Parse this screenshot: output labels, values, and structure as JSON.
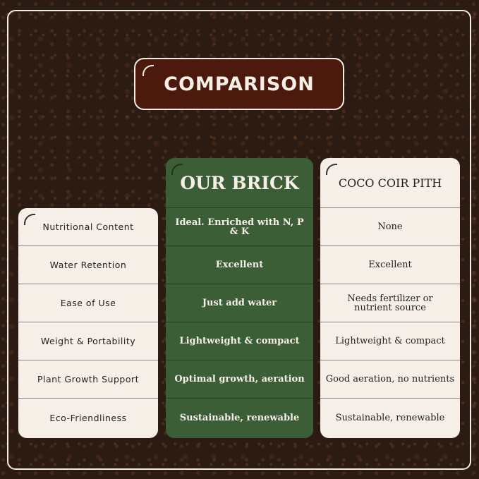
{
  "title": "COMPARISON",
  "features": [
    "Nutritional Content",
    "Water Retention",
    "Ease of Use",
    "Weight & Portability",
    "Plant Growth Support",
    "Eco-Friendliness"
  ],
  "our_brick": {
    "heading": "OUR BRICK",
    "values": [
      "Ideal. Enriched with N, P & K",
      "Excellent",
      "Just add water",
      "Lightweight & compact",
      "Optimal growth, aeration",
      "Sustainable, renewable"
    ]
  },
  "coco_coir": {
    "heading": "COCO COIR PITH",
    "values": [
      "None",
      "Excellent",
      "Needs fertilizer or nutrient source",
      "Lightweight & compact",
      "Good aeration, no nutrients",
      "Sustainable, renewable"
    ]
  },
  "colors": {
    "title_bg": "#4b1a0c",
    "our_brick_bg": "#3b5e37",
    "card_bg": "#f6efe8",
    "soil": "#2b1b13"
  }
}
